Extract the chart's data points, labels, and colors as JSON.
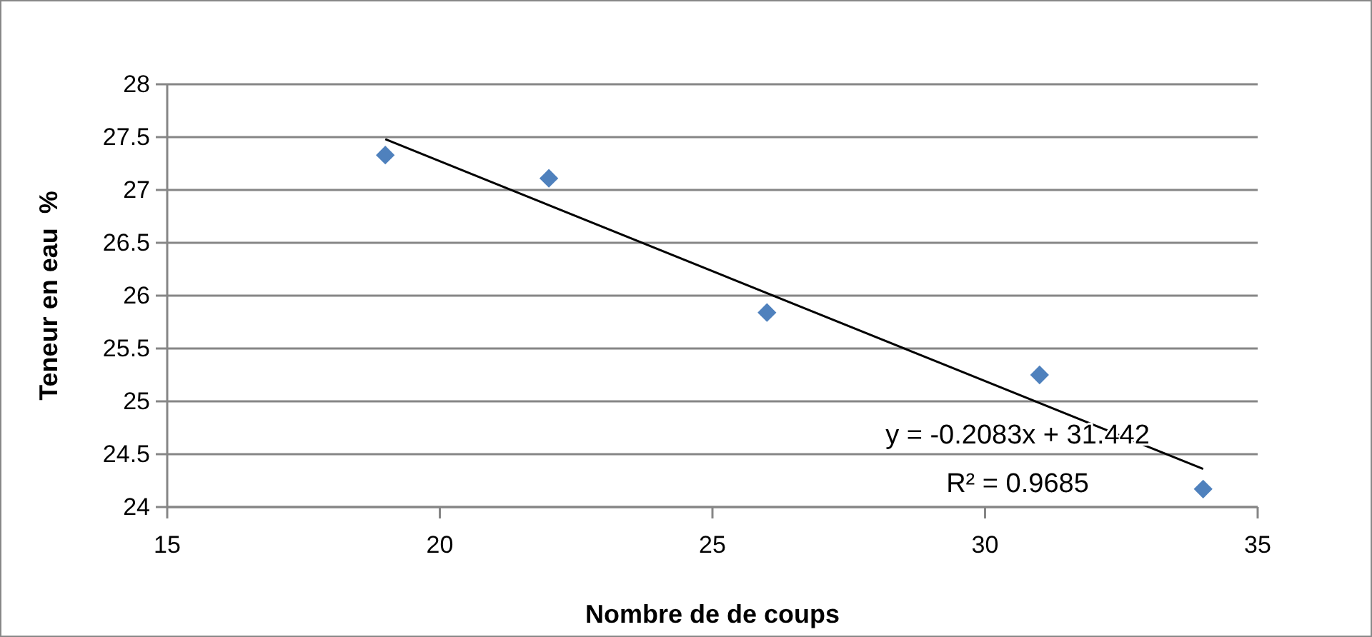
{
  "chart_data": {
    "type": "scatter",
    "xlabel": "Nombre de de coups",
    "ylabel": "Teneur en eau  %",
    "x": [
      19,
      22,
      26,
      31,
      34
    ],
    "series": [
      {
        "color": "#4f81bd",
        "values": [
          27.33,
          27.11,
          25.84,
          25.25,
          24.17
        ],
        "marker": "diamond"
      },
      {
        "type": "line",
        "color": "#000000",
        "x": [
          19,
          34
        ],
        "values": [
          27.48,
          24.36
        ],
        "marker": "none",
        "line_style": "solid"
      }
    ],
    "xlim": [
      15,
      35
    ],
    "xticks": [
      15,
      20,
      25,
      30,
      35
    ],
    "ylim": [
      24,
      28
    ],
    "yticks": [
      24,
      24.5,
      25,
      25.5,
      26,
      26.5,
      27,
      27.5,
      28
    ],
    "grid": "y",
    "annotations": [
      "y = -0.2083x + 31.442",
      "R² = 0.9685"
    ]
  }
}
